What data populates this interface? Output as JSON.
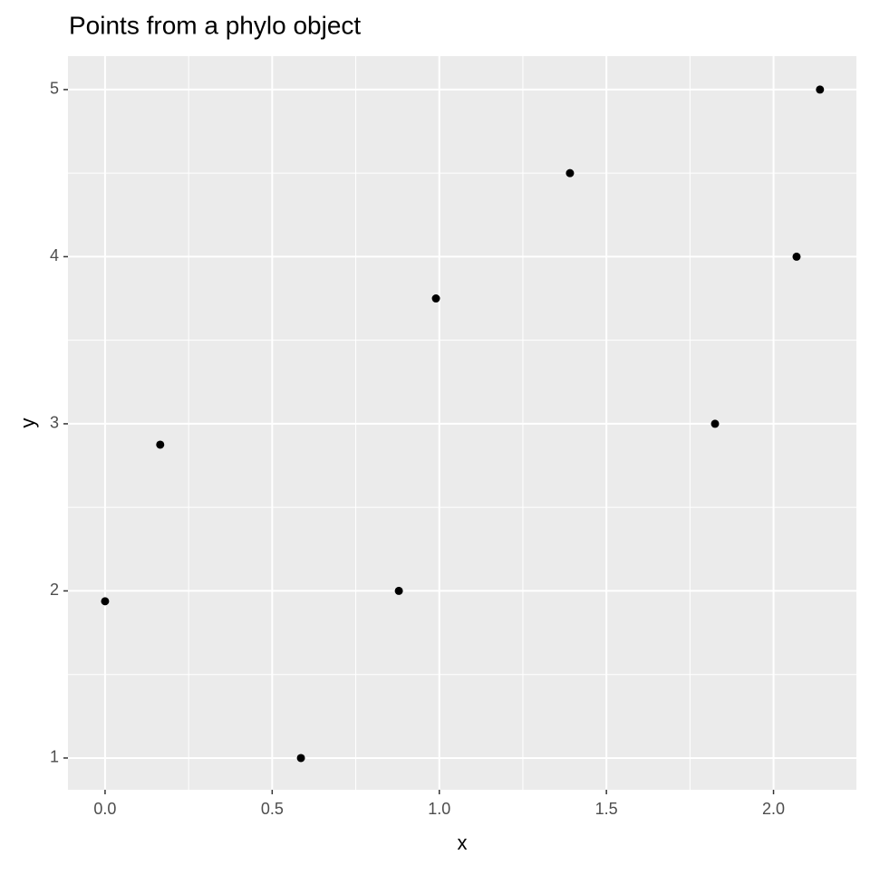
{
  "chart_data": {
    "type": "scatter",
    "title": "Points from a phylo object",
    "x_label": "x",
    "y_label": "y",
    "series": [
      {
        "color": "#000000",
        "x": [
          0,
          0.165,
          0.586,
          0.879,
          0.99,
          1.391,
          1.825,
          2.069,
          2.139
        ],
        "values": [
          1.938,
          2.875,
          1.0,
          2.0,
          3.75,
          4.5,
          3.0,
          4.0,
          5.0
        ]
      }
    ],
    "xlim": [
      -0.111,
      2.248
    ],
    "ylim": [
      0.81,
      5.2
    ],
    "xticks": [
      {
        "value": 0,
        "label": "0.0"
      },
      {
        "value": 0.5,
        "label": "0.5"
      },
      {
        "value": 1,
        "label": "1.0"
      },
      {
        "value": 1.5,
        "label": "1.5"
      },
      {
        "value": 2,
        "label": "2.0"
      }
    ],
    "yticks": [
      1,
      2,
      3,
      4,
      5
    ],
    "grid": true,
    "minor_grid": true
  }
}
